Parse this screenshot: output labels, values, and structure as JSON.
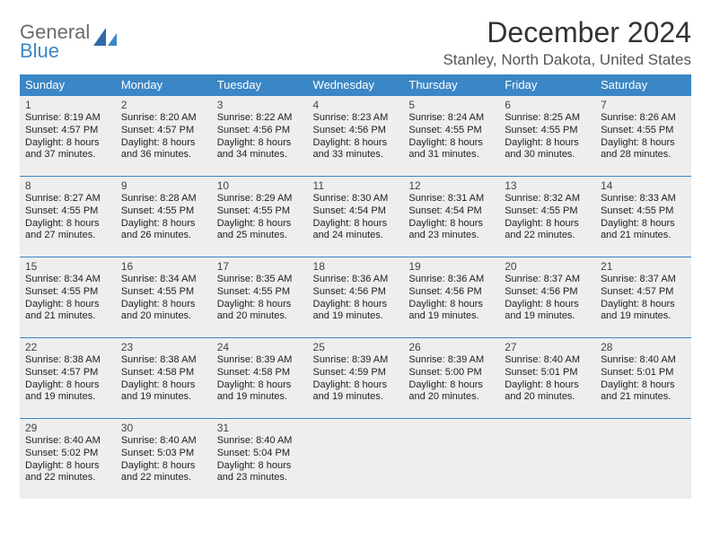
{
  "brand": {
    "word1": "General",
    "word2": "Blue"
  },
  "title": "December 2024",
  "location": "Stanley, North Dakota, United States",
  "colors": {
    "accent": "#3b86c6",
    "cell_bg": "#eeeeee",
    "text": "#222222",
    "header_text": "#333333",
    "logo_gray": "#6b6b6b"
  },
  "days_of_week": [
    "Sunday",
    "Monday",
    "Tuesday",
    "Wednesday",
    "Thursday",
    "Friday",
    "Saturday"
  ],
  "weeks": [
    [
      {
        "n": "1",
        "sr": "Sunrise: 8:19 AM",
        "ss": "Sunset: 4:57 PM",
        "d1": "Daylight: 8 hours",
        "d2": "and 37 minutes."
      },
      {
        "n": "2",
        "sr": "Sunrise: 8:20 AM",
        "ss": "Sunset: 4:57 PM",
        "d1": "Daylight: 8 hours",
        "d2": "and 36 minutes."
      },
      {
        "n": "3",
        "sr": "Sunrise: 8:22 AM",
        "ss": "Sunset: 4:56 PM",
        "d1": "Daylight: 8 hours",
        "d2": "and 34 minutes."
      },
      {
        "n": "4",
        "sr": "Sunrise: 8:23 AM",
        "ss": "Sunset: 4:56 PM",
        "d1": "Daylight: 8 hours",
        "d2": "and 33 minutes."
      },
      {
        "n": "5",
        "sr": "Sunrise: 8:24 AM",
        "ss": "Sunset: 4:55 PM",
        "d1": "Daylight: 8 hours",
        "d2": "and 31 minutes."
      },
      {
        "n": "6",
        "sr": "Sunrise: 8:25 AM",
        "ss": "Sunset: 4:55 PM",
        "d1": "Daylight: 8 hours",
        "d2": "and 30 minutes."
      },
      {
        "n": "7",
        "sr": "Sunrise: 8:26 AM",
        "ss": "Sunset: 4:55 PM",
        "d1": "Daylight: 8 hours",
        "d2": "and 28 minutes."
      }
    ],
    [
      {
        "n": "8",
        "sr": "Sunrise: 8:27 AM",
        "ss": "Sunset: 4:55 PM",
        "d1": "Daylight: 8 hours",
        "d2": "and 27 minutes."
      },
      {
        "n": "9",
        "sr": "Sunrise: 8:28 AM",
        "ss": "Sunset: 4:55 PM",
        "d1": "Daylight: 8 hours",
        "d2": "and 26 minutes."
      },
      {
        "n": "10",
        "sr": "Sunrise: 8:29 AM",
        "ss": "Sunset: 4:55 PM",
        "d1": "Daylight: 8 hours",
        "d2": "and 25 minutes."
      },
      {
        "n": "11",
        "sr": "Sunrise: 8:30 AM",
        "ss": "Sunset: 4:54 PM",
        "d1": "Daylight: 8 hours",
        "d2": "and 24 minutes."
      },
      {
        "n": "12",
        "sr": "Sunrise: 8:31 AM",
        "ss": "Sunset: 4:54 PM",
        "d1": "Daylight: 8 hours",
        "d2": "and 23 minutes."
      },
      {
        "n": "13",
        "sr": "Sunrise: 8:32 AM",
        "ss": "Sunset: 4:55 PM",
        "d1": "Daylight: 8 hours",
        "d2": "and 22 minutes."
      },
      {
        "n": "14",
        "sr": "Sunrise: 8:33 AM",
        "ss": "Sunset: 4:55 PM",
        "d1": "Daylight: 8 hours",
        "d2": "and 21 minutes."
      }
    ],
    [
      {
        "n": "15",
        "sr": "Sunrise: 8:34 AM",
        "ss": "Sunset: 4:55 PM",
        "d1": "Daylight: 8 hours",
        "d2": "and 21 minutes."
      },
      {
        "n": "16",
        "sr": "Sunrise: 8:34 AM",
        "ss": "Sunset: 4:55 PM",
        "d1": "Daylight: 8 hours",
        "d2": "and 20 minutes."
      },
      {
        "n": "17",
        "sr": "Sunrise: 8:35 AM",
        "ss": "Sunset: 4:55 PM",
        "d1": "Daylight: 8 hours",
        "d2": "and 20 minutes."
      },
      {
        "n": "18",
        "sr": "Sunrise: 8:36 AM",
        "ss": "Sunset: 4:56 PM",
        "d1": "Daylight: 8 hours",
        "d2": "and 19 minutes."
      },
      {
        "n": "19",
        "sr": "Sunrise: 8:36 AM",
        "ss": "Sunset: 4:56 PM",
        "d1": "Daylight: 8 hours",
        "d2": "and 19 minutes."
      },
      {
        "n": "20",
        "sr": "Sunrise: 8:37 AM",
        "ss": "Sunset: 4:56 PM",
        "d1": "Daylight: 8 hours",
        "d2": "and 19 minutes."
      },
      {
        "n": "21",
        "sr": "Sunrise: 8:37 AM",
        "ss": "Sunset: 4:57 PM",
        "d1": "Daylight: 8 hours",
        "d2": "and 19 minutes."
      }
    ],
    [
      {
        "n": "22",
        "sr": "Sunrise: 8:38 AM",
        "ss": "Sunset: 4:57 PM",
        "d1": "Daylight: 8 hours",
        "d2": "and 19 minutes."
      },
      {
        "n": "23",
        "sr": "Sunrise: 8:38 AM",
        "ss": "Sunset: 4:58 PM",
        "d1": "Daylight: 8 hours",
        "d2": "and 19 minutes."
      },
      {
        "n": "24",
        "sr": "Sunrise: 8:39 AM",
        "ss": "Sunset: 4:58 PM",
        "d1": "Daylight: 8 hours",
        "d2": "and 19 minutes."
      },
      {
        "n": "25",
        "sr": "Sunrise: 8:39 AM",
        "ss": "Sunset: 4:59 PM",
        "d1": "Daylight: 8 hours",
        "d2": "and 19 minutes."
      },
      {
        "n": "26",
        "sr": "Sunrise: 8:39 AM",
        "ss": "Sunset: 5:00 PM",
        "d1": "Daylight: 8 hours",
        "d2": "and 20 minutes."
      },
      {
        "n": "27",
        "sr": "Sunrise: 8:40 AM",
        "ss": "Sunset: 5:01 PM",
        "d1": "Daylight: 8 hours",
        "d2": "and 20 minutes."
      },
      {
        "n": "28",
        "sr": "Sunrise: 8:40 AM",
        "ss": "Sunset: 5:01 PM",
        "d1": "Daylight: 8 hours",
        "d2": "and 21 minutes."
      }
    ],
    [
      {
        "n": "29",
        "sr": "Sunrise: 8:40 AM",
        "ss": "Sunset: 5:02 PM",
        "d1": "Daylight: 8 hours",
        "d2": "and 22 minutes."
      },
      {
        "n": "30",
        "sr": "Sunrise: 8:40 AM",
        "ss": "Sunset: 5:03 PM",
        "d1": "Daylight: 8 hours",
        "d2": "and 22 minutes."
      },
      {
        "n": "31",
        "sr": "Sunrise: 8:40 AM",
        "ss": "Sunset: 5:04 PM",
        "d1": "Daylight: 8 hours",
        "d2": "and 23 minutes."
      },
      null,
      null,
      null,
      null
    ]
  ]
}
